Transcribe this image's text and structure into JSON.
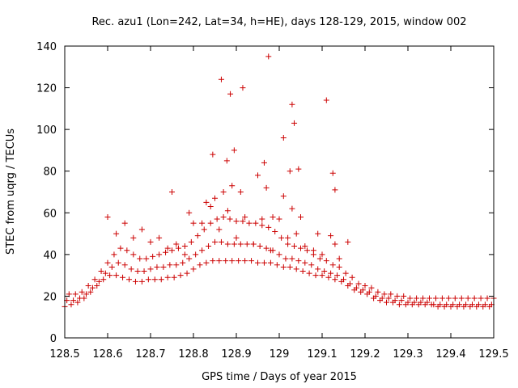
{
  "chart_data": {
    "type": "scatter",
    "title": "Rec. azu1 (Lon=242, Lat=34, h=HE), days 128-129, 2015, window 002",
    "xlabel": "GPS time / Days of year 2015",
    "ylabel": "STEC from uqrg / TECUs",
    "xlim": [
      128.5,
      129.5
    ],
    "ylim": [
      0,
      140
    ],
    "xticks": [
      "128.5",
      "128.6",
      "128.7",
      "128.8",
      "128.9",
      "129",
      "129.1",
      "129.2",
      "129.3",
      "129.4",
      "129.5"
    ],
    "xtick_values": [
      128.5,
      128.6,
      128.7,
      128.8,
      128.9,
      129.0,
      129.1,
      129.2,
      129.3,
      129.4,
      129.5
    ],
    "yticks": [
      "0",
      "20",
      "40",
      "60",
      "80",
      "100",
      "120",
      "140"
    ],
    "ytick_values": [
      0,
      20,
      40,
      60,
      80,
      100,
      120,
      140
    ],
    "grid": false,
    "legend": "none",
    "marker": "+",
    "marker_color": "#cc0000",
    "series": [
      {
        "x": [
          128.5,
          128.515,
          128.53,
          128.545,
          128.56,
          128.575,
          128.59,
          128.605,
          128.62,
          128.635,
          128.65,
          128.665,
          128.68,
          128.695,
          128.71,
          128.725,
          128.74,
          128.755,
          128.77,
          128.785,
          128.8,
          128.815,
          128.83,
          128.845,
          128.86,
          128.875,
          128.89,
          128.905,
          128.92,
          128.935,
          128.95,
          128.965,
          128.98,
          128.995,
          129.01,
          129.025,
          129.04,
          129.055,
          129.07,
          129.085,
          129.1,
          129.115,
          129.13,
          129.145,
          129.16,
          129.175,
          129.19,
          129.205,
          129.22,
          129.235,
          129.25,
          129.265,
          129.28,
          129.295,
          129.31,
          129.325,
          129.34,
          129.355,
          129.37,
          129.385,
          129.4,
          129.415,
          129.43,
          129.445,
          129.46,
          129.475,
          129.49,
          128.505,
          128.52,
          128.535,
          128.55,
          128.565,
          128.58,
          128.595,
          128.61,
          128.625,
          128.64,
          128.655,
          128.67,
          128.685,
          128.7,
          128.715,
          128.73,
          128.745,
          128.76,
          128.775,
          128.79,
          128.805,
          128.82,
          128.835,
          128.85,
          128.865,
          128.88,
          128.895,
          128.91,
          128.925,
          128.94,
          128.955,
          128.97,
          128.985,
          129.0,
          129.015,
          129.03,
          129.045,
          129.06,
          129.075,
          129.09,
          129.105,
          129.12,
          129.135,
          129.15,
          129.165,
          129.18,
          129.195,
          129.21,
          129.225,
          129.24,
          129.255,
          129.27,
          129.285,
          129.3,
          129.315,
          129.33,
          129.345,
          129.36,
          129.375,
          129.39,
          129.405,
          129.42,
          129.435,
          129.45,
          129.465,
          129.48,
          129.495,
          128.51,
          128.525,
          128.54,
          128.555,
          128.57,
          128.585,
          128.6,
          128.615,
          128.63,
          128.645,
          128.66,
          128.675,
          128.69,
          128.705,
          128.72,
          128.735,
          128.75,
          128.765,
          128.78,
          128.795,
          128.81,
          128.825,
          128.84,
          128.855,
          128.87,
          128.885,
          128.9,
          128.915,
          128.93,
          128.945,
          128.96,
          128.975,
          128.99,
          129.005,
          129.02,
          129.035,
          129.05,
          129.065,
          129.08,
          129.095,
          129.11,
          129.125,
          129.14,
          129.155,
          129.17,
          129.185,
          129.2,
          129.215,
          129.23,
          129.245,
          129.26,
          129.275,
          129.29,
          129.305,
          129.32,
          129.335,
          129.35,
          129.365,
          129.38,
          129.395,
          129.41,
          129.425,
          129.44,
          129.455,
          129.47,
          129.485,
          129.5,
          128.6,
          128.64,
          128.68,
          128.72,
          128.76,
          128.8,
          128.84,
          128.88,
          128.92,
          128.96,
          129.0,
          129.04,
          129.08,
          129.12,
          129.16,
          128.62,
          128.66,
          128.7,
          128.74,
          128.78,
          128.82,
          128.86,
          128.9,
          128.94,
          128.98,
          129.02,
          129.06,
          129.1,
          129.14,
          128.75,
          128.79,
          128.83,
          128.85,
          128.87,
          128.89,
          128.91,
          128.95,
          128.97,
          129.01,
          129.03,
          129.05,
          129.09,
          129.13,
          128.845,
          128.865,
          128.878,
          128.886,
          128.895,
          128.915,
          128.965,
          128.975,
          128.985,
          129.01,
          129.025,
          129.03,
          129.035,
          129.045,
          129.11,
          129.125,
          129.13
        ],
        "y": [
          15,
          16,
          17,
          19,
          22,
          25,
          28,
          30,
          30,
          29,
          28,
          27,
          27,
          28,
          28,
          28,
          29,
          29,
          30,
          31,
          33,
          35,
          36,
          37,
          37,
          37,
          37,
          37,
          37,
          37,
          36,
          36,
          36,
          35,
          34,
          34,
          33,
          32,
          31,
          30,
          30,
          29,
          28,
          27,
          25,
          23,
          22,
          21,
          19,
          18,
          17,
          17,
          16,
          16,
          16,
          16,
          16,
          16,
          15,
          15,
          15,
          15,
          15,
          15,
          15,
          15,
          15,
          18,
          18,
          19,
          21,
          24,
          27,
          31,
          34,
          36,
          35,
          33,
          32,
          32,
          33,
          34,
          34,
          35,
          35,
          36,
          38,
          40,
          42,
          44,
          46,
          46,
          45,
          45,
          45,
          45,
          45,
          44,
          43,
          42,
          40,
          38,
          38,
          37,
          36,
          35,
          33,
          32,
          31,
          30,
          28,
          26,
          24,
          23,
          22,
          20,
          19,
          19,
          18,
          18,
          17,
          17,
          17,
          17,
          16,
          16,
          16,
          16,
          16,
          16,
          16,
          16,
          16,
          16,
          21,
          21,
          22,
          25,
          28,
          32,
          36,
          40,
          43,
          42,
          40,
          38,
          38,
          39,
          40,
          41,
          42,
          43,
          44,
          46,
          49,
          52,
          55,
          57,
          58,
          57,
          56,
          56,
          55,
          55,
          54,
          53,
          51,
          48,
          45,
          44,
          43,
          42,
          40,
          38,
          37,
          35,
          34,
          31,
          29,
          26,
          25,
          24,
          22,
          21,
          21,
          20,
          20,
          19,
          19,
          19,
          19,
          19,
          19,
          19,
          19,
          19,
          19,
          19,
          19,
          19,
          19,
          58,
          55,
          52,
          48,
          45,
          55,
          63,
          61,
          58,
          57,
          57,
          50,
          42,
          49,
          46,
          50,
          48,
          46,
          43,
          40,
          55,
          52,
          48,
          45,
          42,
          48,
          44,
          40,
          38,
          70,
          60,
          65,
          67,
          70,
          73,
          70,
          78,
          72,
          68,
          62,
          58,
          50,
          45,
          88,
          124,
          85,
          117,
          90,
          120,
          84,
          135,
          58,
          96,
          80,
          112,
          103,
          81,
          114,
          79,
          71
        ]
      }
    ]
  }
}
